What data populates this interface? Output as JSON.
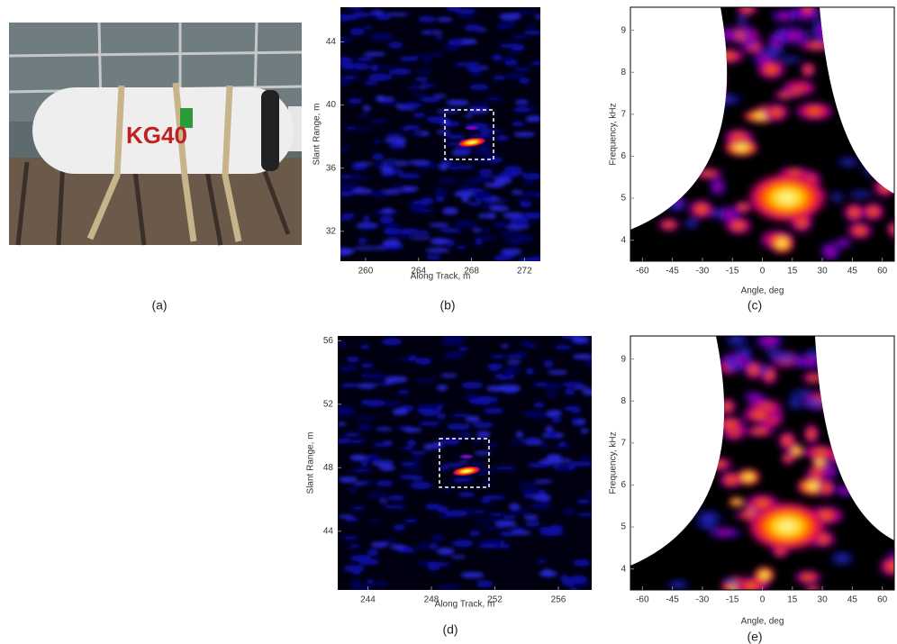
{
  "figure": {
    "panels": [
      {
        "caption": "(a)",
        "photo_text": "KG40"
      },
      {
        "caption": "(b)",
        "xlabel": "Along Track, m",
        "ylabel": "Slant Range, m",
        "xlim": [
          258.1,
          273.2
        ],
        "ylim": [
          30.1,
          46.2
        ],
        "xticks": [
          260,
          264,
          268,
          272
        ],
        "yticks": [
          32,
          36,
          40,
          44
        ]
      },
      {
        "caption": "(c)",
        "xlabel": "Angle, deg",
        "ylabel": "Frequency, kHz",
        "xlim": [
          -66,
          66
        ],
        "ylim": [
          3.5,
          9.55
        ],
        "xticks": [
          -60,
          -45,
          -30,
          -15,
          0,
          15,
          30,
          45,
          60
        ],
        "yticks": [
          4,
          5,
          6,
          7,
          8,
          9
        ]
      },
      {
        "caption": "(d)",
        "xlabel": "Along Track, m",
        "ylabel": "Slant Range, m",
        "xlim": [
          242.1,
          258.1
        ],
        "ylim": [
          40.3,
          56.3
        ],
        "xticks": [
          244,
          248,
          252,
          256
        ],
        "yticks": [
          44,
          48,
          52,
          56
        ]
      },
      {
        "caption": "(e)",
        "xlabel": "Angle, deg",
        "ylabel": "Frequency, kHz",
        "xlim": [
          -66,
          66
        ],
        "ylim": [
          3.5,
          9.55
        ],
        "xticks": [
          -60,
          -45,
          -30,
          -15,
          0,
          15,
          30,
          45,
          60
        ],
        "yticks": [
          4,
          5,
          6,
          7,
          8,
          9
        ]
      }
    ]
  }
}
